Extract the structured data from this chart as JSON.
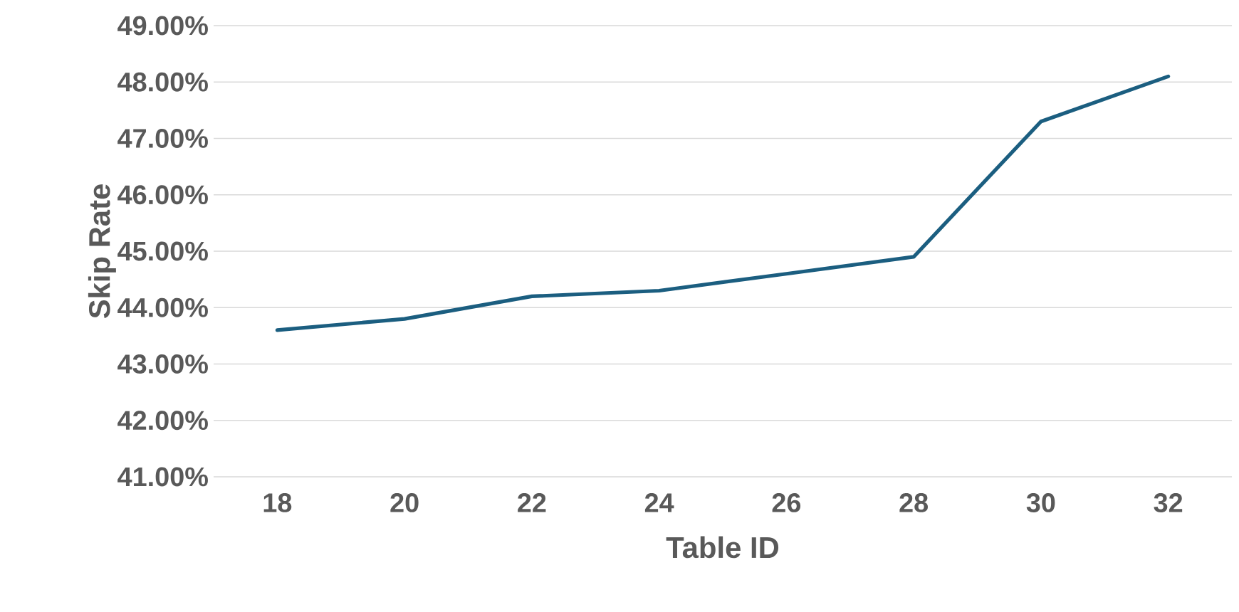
{
  "chart_data": {
    "type": "line",
    "xlabel": "Table ID",
    "ylabel": "Skip Rate",
    "categories": [
      "18",
      "20",
      "22",
      "24",
      "26",
      "28",
      "30",
      "32"
    ],
    "series": [
      {
        "color": "#1b5e80",
        "values": [
          43.6,
          43.8,
          44.2,
          44.3,
          44.6,
          44.9,
          47.3,
          48.1
        ]
      }
    ],
    "ylim": [
      41,
      49
    ],
    "yticks": [
      {
        "value": 41,
        "label": "41.00%"
      },
      {
        "value": 42,
        "label": "42.00%"
      },
      {
        "value": 43,
        "label": "43.00%"
      },
      {
        "value": 44,
        "label": "44.00%"
      },
      {
        "value": 45,
        "label": "45.00%"
      },
      {
        "value": 46,
        "label": "46.00%"
      },
      {
        "value": 47,
        "label": "47.00%"
      },
      {
        "value": 48,
        "label": "48.00%"
      },
      {
        "value": 49,
        "label": "49.00%"
      }
    ],
    "grid": "y",
    "marker": "none",
    "line_style": "solid"
  }
}
